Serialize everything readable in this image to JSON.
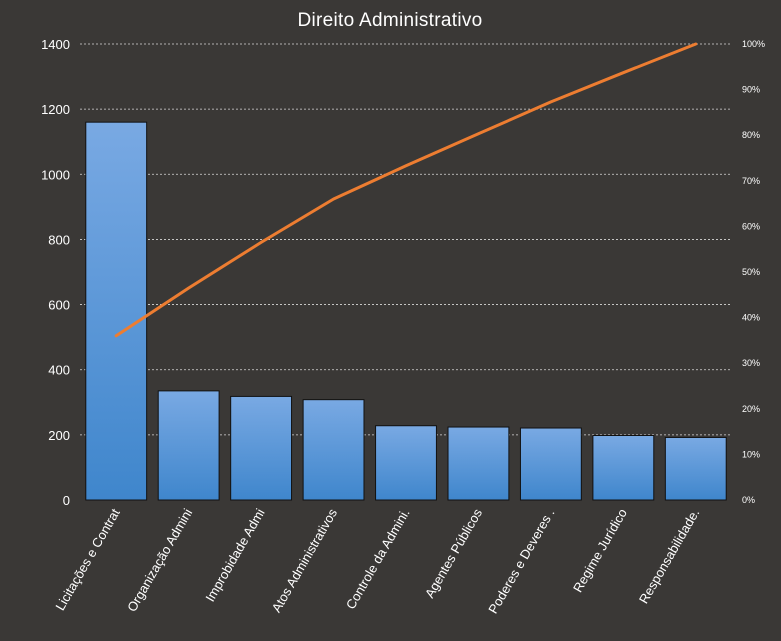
{
  "chart_data": {
    "type": "bar",
    "title": "Direito Administrativo",
    "categories": [
      "Licitações e Contrat",
      "Organização Admini",
      "Improbidade Admi",
      "Atos Administrativos",
      "Controle da Admini.",
      "Agentes Públicos",
      "Poderes e Deveres .",
      "Regime Jurídico",
      "Responsabilidade."
    ],
    "series": [
      {
        "values": [
          1160,
          335,
          318,
          308,
          228,
          224,
          221,
          198,
          192
        ]
      }
    ],
    "cumulative_percent": [
      36,
      46.5,
      56.5,
      66,
      73.3,
      80.3,
      87.3,
      93.7,
      100
    ],
    "ylim": [
      0,
      1400
    ],
    "yticks": [
      "0",
      "200",
      "400",
      "600",
      "800",
      "1000",
      "1200",
      "1400"
    ],
    "y2lim": [
      0,
      100
    ],
    "y2ticks": [
      "0%",
      "10%",
      "20%",
      "30%",
      "40%",
      "50%",
      "60%",
      "70%",
      "80%",
      "90%",
      "100%"
    ],
    "xlabel": "",
    "ylabel": "",
    "grid": true,
    "legend": "none",
    "colors": {
      "background": "#3a3836",
      "bar_top": "#79a9e3",
      "bar_bottom": "#3f86cc",
      "line": "#ed7d31",
      "text": "#ffffff",
      "grid": "#d9d9d9"
    }
  }
}
